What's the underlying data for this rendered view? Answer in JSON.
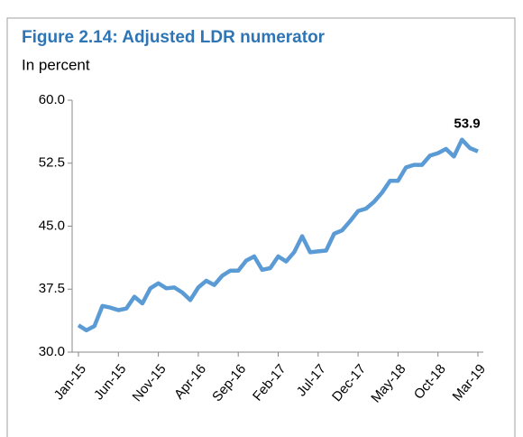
{
  "chart_data": {
    "type": "line",
    "title": "Figure 2.14: Adjusted LDR numerator",
    "subtitle": "In percent",
    "categories": [
      "Jan-15",
      null,
      null,
      null,
      null,
      "Jun-15",
      null,
      null,
      null,
      null,
      "Nov-15",
      null,
      null,
      null,
      null,
      "Apr-16",
      null,
      null,
      null,
      null,
      "Sep-16",
      null,
      null,
      null,
      null,
      "Feb-17",
      null,
      null,
      null,
      null,
      "Jul-17",
      null,
      null,
      null,
      null,
      "Dec-17",
      null,
      null,
      null,
      null,
      "May-18",
      null,
      null,
      null,
      null,
      "Oct-18",
      null,
      null,
      null,
      null,
      "Mar-19"
    ],
    "values": [
      33.2,
      32.6,
      33.1,
      35.5,
      35.3,
      35.0,
      35.2,
      36.6,
      35.8,
      37.6,
      38.2,
      37.6,
      37.7,
      37.1,
      36.2,
      37.7,
      38.5,
      38.0,
      39.1,
      39.7,
      39.7,
      40.9,
      41.4,
      39.8,
      40.0,
      41.4,
      40.8,
      41.9,
      43.8,
      41.9,
      42.0,
      42.1,
      44.1,
      44.5,
      45.6,
      46.8,
      47.1,
      47.9,
      49.0,
      50.4,
      50.4,
      52.0,
      52.3,
      52.3,
      53.4,
      53.7,
      54.2,
      53.3,
      55.3,
      54.3,
      53.9
    ],
    "color": "#5b9bd5",
    "ylim": [
      30,
      60
    ],
    "yticks": [
      {
        "value": 30,
        "label": "30.0"
      },
      37.5,
      {
        "value": 45,
        "label": "45.0"
      },
      52.5,
      {
        "value": 60,
        "label": "60.0"
      }
    ],
    "grid": false
  }
}
